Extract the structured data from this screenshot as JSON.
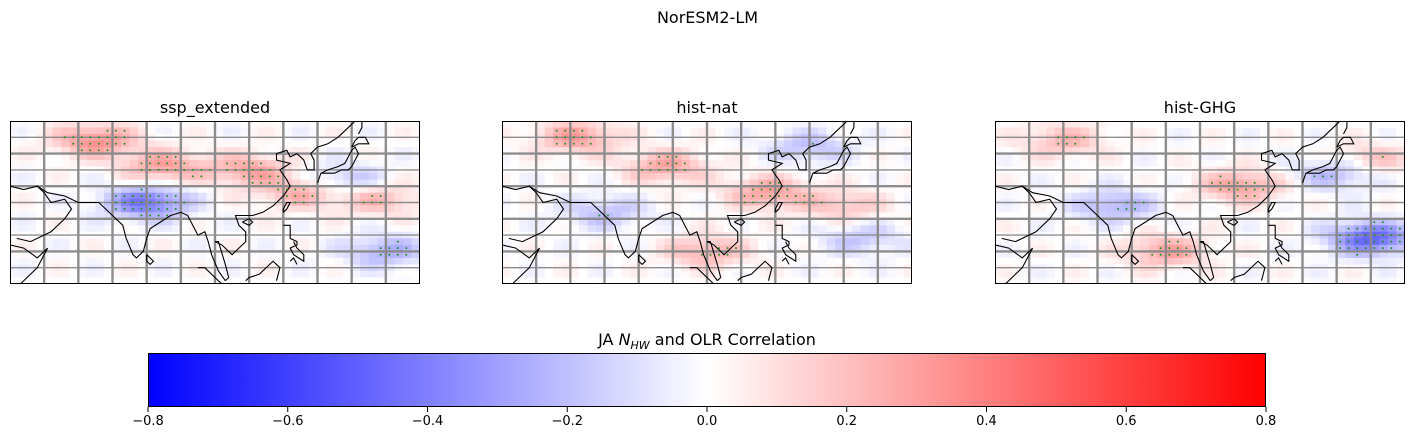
{
  "figure": {
    "suptitle": "NorESM2-LM",
    "colorbar": {
      "title_prefix": "JA ",
      "title_var": "N",
      "title_sub": "HW",
      "title_suffix": " and OLR Correlation",
      "range": [
        -0.8,
        0.8
      ],
      "ticks": [
        "−0.8",
        "−0.6",
        "−0.4",
        "−0.2",
        "0.0",
        "0.2",
        "0.4",
        "0.6",
        "0.8"
      ],
      "colors": {
        "low": "#0000ff",
        "mid": "#ffffff",
        "high": "#ff0000"
      }
    }
  },
  "chart_data": [
    {
      "type": "heatmap",
      "title": "ssp_extended",
      "colormap": "bwr",
      "vmin": -0.8,
      "vmax": 0.8,
      "grid": true,
      "stipple_color": "#1f8f1f",
      "features": [
        {
          "kind": "positive",
          "value": 0.35,
          "lon": 65,
          "lat": 44
        },
        {
          "kind": "positive",
          "value": 0.3,
          "lon": 85,
          "lat": 36
        },
        {
          "kind": "positive",
          "value": 0.28,
          "lon": 110,
          "lat": 35
        },
        {
          "kind": "positive",
          "value": 0.25,
          "lon": 125,
          "lat": 28
        },
        {
          "kind": "positive",
          "value": 0.22,
          "lon": 148,
          "lat": 26
        },
        {
          "kind": "negative",
          "value": -0.45,
          "lon": 80,
          "lat": 25
        },
        {
          "kind": "negative",
          "value": -0.25,
          "lon": 150,
          "lat": 10
        },
        {
          "kind": "negative",
          "value": -0.2,
          "lon": 138,
          "lat": 32
        }
      ]
    },
    {
      "type": "heatmap",
      "title": "hist-nat",
      "colormap": "bwr",
      "vmin": -0.8,
      "vmax": 0.8,
      "grid": true,
      "stipple_color": "#1f8f1f",
      "features": [
        {
          "kind": "positive",
          "value": 0.3,
          "lon": 62,
          "lat": 45
        },
        {
          "kind": "positive",
          "value": 0.28,
          "lon": 88,
          "lat": 36
        },
        {
          "kind": "positive",
          "value": 0.3,
          "lon": 118,
          "lat": 28
        },
        {
          "kind": "positive",
          "value": 0.25,
          "lon": 100,
          "lat": 10
        },
        {
          "kind": "positive",
          "value": 0.2,
          "lon": 140,
          "lat": 24
        },
        {
          "kind": "negative",
          "value": -0.2,
          "lon": 130,
          "lat": 42
        },
        {
          "kind": "negative",
          "value": -0.2,
          "lon": 70,
          "lat": 22
        },
        {
          "kind": "negative",
          "value": -0.18,
          "lon": 145,
          "lat": 14
        }
      ]
    },
    {
      "type": "heatmap",
      "title": "hist-GHG",
      "colormap": "bwr",
      "vmin": -0.8,
      "vmax": 0.8,
      "grid": true,
      "stipple_color": "#1f8f1f",
      "features": [
        {
          "kind": "positive",
          "value": 0.3,
          "lon": 112,
          "lat": 30
        },
        {
          "kind": "positive",
          "value": 0.28,
          "lon": 90,
          "lat": 10
        },
        {
          "kind": "positive",
          "value": 0.22,
          "lon": 60,
          "lat": 44
        },
        {
          "kind": "positive",
          "value": 0.2,
          "lon": 150,
          "lat": 38
        },
        {
          "kind": "negative",
          "value": -0.5,
          "lon": 150,
          "lat": 14
        },
        {
          "kind": "negative",
          "value": -0.25,
          "lon": 75,
          "lat": 24
        },
        {
          "kind": "negative",
          "value": -0.25,
          "lon": 140,
          "lat": 34
        }
      ]
    }
  ]
}
